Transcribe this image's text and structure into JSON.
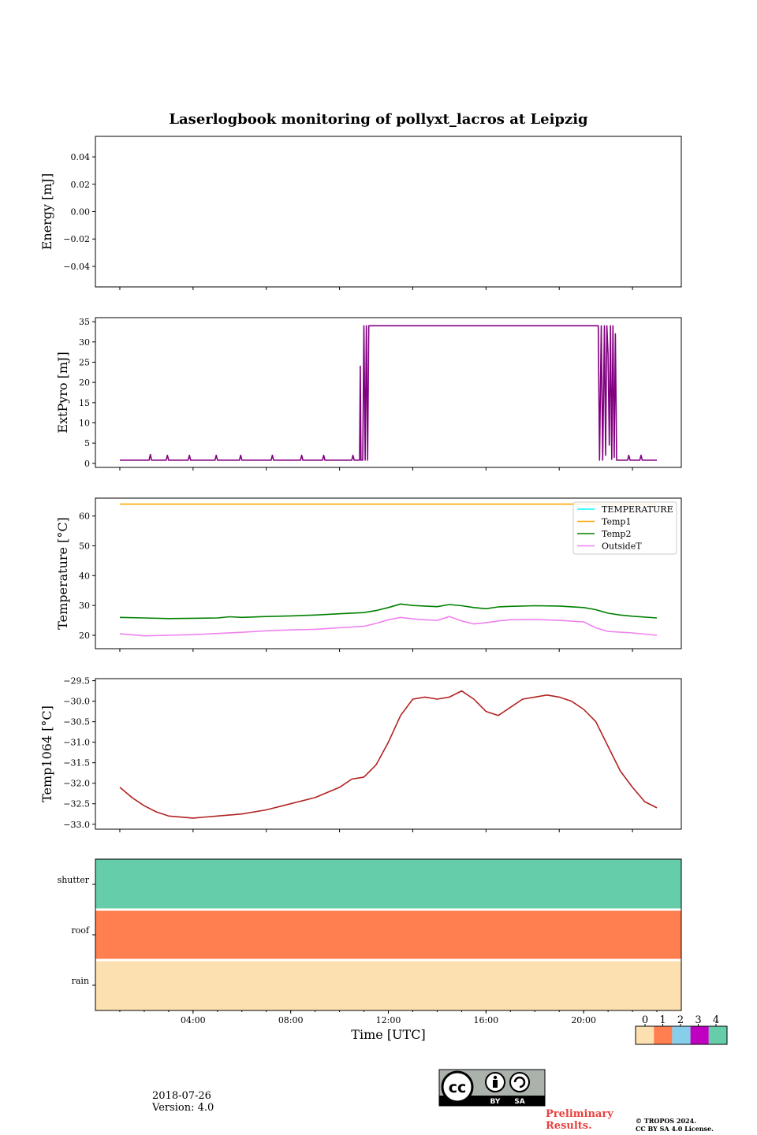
{
  "title": "Laserlogbook monitoring of pollyxt_lacros at Leipzig",
  "footer": {
    "date": "2018-07-26",
    "version": "Version: 4.0",
    "preliminary_line1": "Preliminary",
    "preliminary_line2": "Results.",
    "copyright_line1": "© TROPOS 2024.",
    "copyright_line2": "CC BY SA 4.0 License.",
    "license_badge": {
      "icon": "cc-by-sa-icon",
      "text_by": "BY",
      "text_sa": "SA"
    }
  },
  "colors": {
    "temperature": "#00ffff",
    "temp1": "#ffa500",
    "temp2": "#008000",
    "outsideT": "#ee82ee",
    "extpyro": "#800080",
    "temp1064": "#b22222",
    "status": [
      "#fde0b0",
      "#ff7f50",
      "#87ceeb",
      "#c000c0",
      "#66cdaa"
    ]
  },
  "chart_data": [
    {
      "type": "line",
      "ylabel": "Energy [mJ]",
      "ylim": [
        -0.055,
        0.055
      ],
      "yticks": [
        0.04,
        0.02,
        0.0,
        -0.02,
        -0.04
      ],
      "ytick_labels": [
        "0.04",
        "0.02",
        "0.00",
        "−0.02",
        "−0.04"
      ],
      "series": []
    },
    {
      "type": "line",
      "ylabel": "ExtPyro [mJ]",
      "ylim": [
        -1,
        36
      ],
      "yticks": [
        0,
        5,
        10,
        15,
        20,
        25,
        30,
        35
      ],
      "ytick_labels": [
        "0",
        "5",
        "10",
        "15",
        "20",
        "25",
        "30",
        "35"
      ],
      "series": [
        {
          "color_key": "extpyro",
          "points": [
            [
              1.0,
              0.8
            ],
            [
              2.2,
              0.8
            ],
            [
              2.25,
              2.2
            ],
            [
              2.3,
              0.8
            ],
            [
              2.9,
              0.8
            ],
            [
              2.95,
              2.0
            ],
            [
              3.0,
              0.8
            ],
            [
              3.8,
              0.8
            ],
            [
              3.85,
              2.0
            ],
            [
              3.9,
              0.8
            ],
            [
              4.9,
              0.8
            ],
            [
              4.95,
              2.0
            ],
            [
              5.0,
              0.8
            ],
            [
              5.9,
              0.8
            ],
            [
              5.95,
              2.0
            ],
            [
              6.0,
              0.8
            ],
            [
              7.2,
              0.8
            ],
            [
              7.25,
              2.0
            ],
            [
              7.3,
              0.8
            ],
            [
              8.4,
              0.8
            ],
            [
              8.45,
              2.0
            ],
            [
              8.5,
              0.8
            ],
            [
              9.3,
              0.8
            ],
            [
              9.35,
              2.0
            ],
            [
              9.4,
              0.8
            ],
            [
              10.5,
              0.8
            ],
            [
              10.55,
              2.0
            ],
            [
              10.6,
              0.8
            ],
            [
              10.82,
              0.8
            ],
            [
              10.85,
              24
            ],
            [
              10.88,
              0.8
            ],
            [
              10.95,
              0.8
            ],
            [
              11.0,
              34
            ],
            [
              11.05,
              0.8
            ],
            [
              11.1,
              34
            ],
            [
              11.15,
              0.8
            ],
            [
              11.2,
              34
            ],
            [
              20.6,
              34
            ],
            [
              20.65,
              0.8
            ],
            [
              20.72,
              34
            ],
            [
              20.78,
              0.8
            ],
            [
              20.85,
              34
            ],
            [
              20.9,
              2.0
            ],
            [
              20.95,
              34
            ],
            [
              21.0,
              27
            ],
            [
              21.05,
              4.5
            ],
            [
              21.1,
              34
            ],
            [
              21.15,
              1.0
            ],
            [
              21.2,
              34
            ],
            [
              21.25,
              1.5
            ],
            [
              21.3,
              32
            ],
            [
              21.35,
              0.8
            ],
            [
              21.8,
              0.8
            ],
            [
              21.85,
              2.0
            ],
            [
              21.9,
              0.8
            ],
            [
              22.3,
              0.8
            ],
            [
              22.35,
              2.0
            ],
            [
              22.4,
              0.8
            ],
            [
              23.0,
              0.8
            ]
          ]
        }
      ]
    },
    {
      "type": "line",
      "ylabel": "Temperature [°C]",
      "ylim": [
        15.5,
        66
      ],
      "yticks": [
        20,
        30,
        40,
        50,
        60
      ],
      "ytick_labels": [
        "20",
        "30",
        "40",
        "50",
        "60"
      ],
      "legend": {
        "placement": "top-right",
        "entries": [
          "TEMPERATURE",
          "Temp1",
          "Temp2",
          "OutsideT"
        ]
      },
      "series": [
        {
          "name": "TEMPERATURE",
          "color_key": "temperature",
          "points": []
        },
        {
          "name": "Temp1",
          "color_key": "temp1",
          "points": [
            [
              1.0,
              64.0
            ],
            [
              23.0,
              64.0
            ]
          ]
        },
        {
          "name": "Temp2",
          "color_key": "temp2",
          "points": [
            [
              1.0,
              26.0
            ],
            [
              2.0,
              25.8
            ],
            [
              3.0,
              25.6
            ],
            [
              4.0,
              25.7
            ],
            [
              5.0,
              25.8
            ],
            [
              5.5,
              26.2
            ],
            [
              6.0,
              26.0
            ],
            [
              7.0,
              26.3
            ],
            [
              8.0,
              26.5
            ],
            [
              9.0,
              26.8
            ],
            [
              10.0,
              27.2
            ],
            [
              11.0,
              27.6
            ],
            [
              11.5,
              28.3
            ],
            [
              12.0,
              29.3
            ],
            [
              12.5,
              30.5
            ],
            [
              13.0,
              30.0
            ],
            [
              13.5,
              29.8
            ],
            [
              14.0,
              29.6
            ],
            [
              14.5,
              30.3
            ],
            [
              15.0,
              29.9
            ],
            [
              15.5,
              29.3
            ],
            [
              16.0,
              28.9
            ],
            [
              16.5,
              29.5
            ],
            [
              17.0,
              29.7
            ],
            [
              18.0,
              29.9
            ],
            [
              19.0,
              29.8
            ],
            [
              20.0,
              29.3
            ],
            [
              20.5,
              28.6
            ],
            [
              21.0,
              27.4
            ],
            [
              21.5,
              26.8
            ],
            [
              22.0,
              26.4
            ],
            [
              23.0,
              25.8
            ]
          ]
        },
        {
          "name": "OutsideT",
          "color_key": "outsideT",
          "points": [
            [
              1.0,
              20.5
            ],
            [
              2.0,
              19.8
            ],
            [
              3.0,
              20.0
            ],
            [
              4.0,
              20.2
            ],
            [
              5.0,
              20.6
            ],
            [
              6.0,
              21.0
            ],
            [
              7.0,
              21.5
            ],
            [
              8.0,
              21.8
            ],
            [
              9.0,
              22.0
            ],
            [
              10.0,
              22.5
            ],
            [
              11.0,
              23.0
            ],
            [
              11.5,
              24.0
            ],
            [
              12.0,
              25.2
            ],
            [
              12.5,
              26.0
            ],
            [
              13.0,
              25.5
            ],
            [
              13.5,
              25.2
            ],
            [
              14.0,
              25.0
            ],
            [
              14.5,
              26.3
            ],
            [
              15.0,
              24.8
            ],
            [
              15.5,
              23.8
            ],
            [
              16.0,
              24.2
            ],
            [
              16.5,
              24.8
            ],
            [
              17.0,
              25.2
            ],
            [
              18.0,
              25.3
            ],
            [
              19.0,
              25.0
            ],
            [
              20.0,
              24.5
            ],
            [
              20.5,
              22.5
            ],
            [
              21.0,
              21.3
            ],
            [
              22.0,
              20.8
            ],
            [
              23.0,
              20.0
            ]
          ]
        }
      ]
    },
    {
      "type": "line",
      "ylabel": "Temp1064 [°C]",
      "ylim": [
        -33.12,
        -29.45
      ],
      "yticks": [
        -29.5,
        -30.0,
        -30.5,
        -31.0,
        -31.5,
        -32.0,
        -32.5,
        -33.0
      ],
      "ytick_labels": [
        "−29.5",
        "−30.0",
        "−30.5",
        "−31.0",
        "−31.5",
        "−32.0",
        "−32.5",
        "−33.0"
      ],
      "series": [
        {
          "name": "Temp1064",
          "color_key": "temp1064",
          "points": [
            [
              1.0,
              -32.1
            ],
            [
              1.5,
              -32.35
            ],
            [
              2.0,
              -32.55
            ],
            [
              2.5,
              -32.7
            ],
            [
              3.0,
              -32.8
            ],
            [
              4.0,
              -32.85
            ],
            [
              5.0,
              -32.8
            ],
            [
              6.0,
              -32.75
            ],
            [
              7.0,
              -32.65
            ],
            [
              8.0,
              -32.5
            ],
            [
              9.0,
              -32.35
            ],
            [
              10.0,
              -32.1
            ],
            [
              10.5,
              -31.9
            ],
            [
              11.0,
              -31.85
            ],
            [
              11.5,
              -31.55
            ],
            [
              12.0,
              -31.0
            ],
            [
              12.5,
              -30.35
            ],
            [
              13.0,
              -29.95
            ],
            [
              13.5,
              -29.9
            ],
            [
              14.0,
              -29.95
            ],
            [
              14.5,
              -29.9
            ],
            [
              15.0,
              -29.75
            ],
            [
              15.5,
              -29.95
            ],
            [
              16.0,
              -30.25
            ],
            [
              16.5,
              -30.35
            ],
            [
              17.0,
              -30.15
            ],
            [
              17.5,
              -29.95
            ],
            [
              18.0,
              -29.9
            ],
            [
              18.5,
              -29.85
            ],
            [
              19.0,
              -29.9
            ],
            [
              19.5,
              -30.0
            ],
            [
              20.0,
              -30.2
            ],
            [
              20.5,
              -30.5
            ],
            [
              21.0,
              -31.1
            ],
            [
              21.5,
              -31.7
            ],
            [
              22.0,
              -32.1
            ],
            [
              22.5,
              -32.45
            ],
            [
              23.0,
              -32.6
            ]
          ]
        }
      ]
    },
    {
      "type": "heatmap",
      "xlabel": "Time [UTC]",
      "xlim": [
        0,
        24
      ],
      "xticks": [
        4,
        8,
        12,
        16,
        20
      ],
      "xtick_labels": [
        "04:00",
        "08:00",
        "12:00",
        "16:00",
        "20:00"
      ],
      "rows": [
        {
          "label": "shutter",
          "state": 4
        },
        {
          "label": "roof",
          "state": 1
        },
        {
          "label": "rain",
          "state": 0
        }
      ],
      "colorbar": {
        "labels": [
          "0",
          "1",
          "2",
          "3",
          "4"
        ]
      }
    }
  ]
}
